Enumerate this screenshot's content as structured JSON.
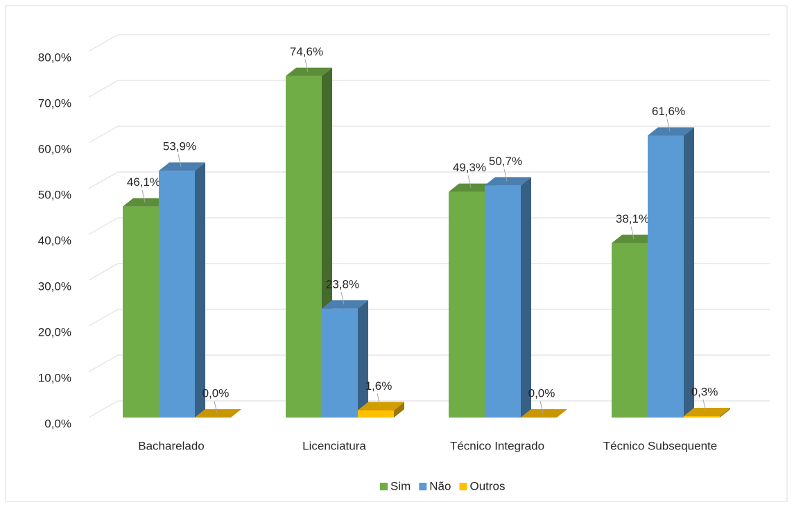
{
  "chart_data": {
    "type": "bar3d",
    "categories": [
      "Bacharelado",
      "Licenciatura",
      "Técnico Integrado",
      "Técnico Subsequente"
    ],
    "series": [
      {
        "name": "Sim",
        "color": "#70ad47",
        "values": [
          46.1,
          74.6,
          49.3,
          38.1
        ],
        "value_labels": [
          "46,1%",
          "74,6%",
          "49,3%",
          "38,1%"
        ]
      },
      {
        "name": "Não",
        "color": "#5b9bd5",
        "values": [
          53.9,
          23.8,
          50.7,
          61.6
        ],
        "value_labels": [
          "53,9%",
          "23,8%",
          "50,7%",
          "61,6%"
        ]
      },
      {
        "name": "Outros",
        "color": "#ffc000",
        "values": [
          0,
          1.6,
          0,
          0.3
        ],
        "value_labels": [
          "0,0%",
          "1,6%",
          "0,0%",
          "0,3%"
        ]
      }
    ],
    "ylim": [
      0,
      80
    ],
    "yticks": [
      {
        "value": 0,
        "label": "0,0%"
      },
      {
        "value": 10,
        "label": "10,0%"
      },
      {
        "value": 20,
        "label": "20,0%"
      },
      {
        "value": 30,
        "label": "30,0%"
      },
      {
        "value": 40,
        "label": "40,0%"
      },
      {
        "value": 50,
        "label": "50,0%"
      },
      {
        "value": 60,
        "label": "60,0%"
      },
      {
        "value": 70,
        "label": "70,0%"
      },
      {
        "value": 80,
        "label": "80,0%"
      }
    ],
    "grid": true,
    "legend": "bottom"
  }
}
